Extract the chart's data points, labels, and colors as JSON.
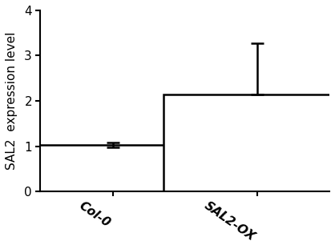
{
  "categories": [
    "Col-0",
    "SAL2-OX"
  ],
  "values": [
    1.03,
    2.15
  ],
  "errors_low": [
    0.05,
    0.0
  ],
  "errors_high": [
    0.05,
    1.12
  ],
  "bar_color": "#ffffff",
  "bar_edgecolor": "#000000",
  "bar_linewidth": 1.8,
  "error_linewidth": 1.8,
  "error_capsize": 6,
  "ylabel": "SAL2  expression level",
  "ylim": [
    0,
    4
  ],
  "yticks": [
    0,
    1,
    2,
    3,
    4
  ],
  "bar_width": 0.65,
  "bar_positions": [
    0.25,
    0.75
  ],
  "xlim": [
    0.0,
    1.0
  ],
  "figsize": [
    4.18,
    3.11
  ],
  "dpi": 100,
  "background_color": "#ffffff",
  "spine_linewidth": 1.5,
  "tick_label_fontsize": 11,
  "ylabel_fontsize": 11,
  "xtick_rotation": -35
}
